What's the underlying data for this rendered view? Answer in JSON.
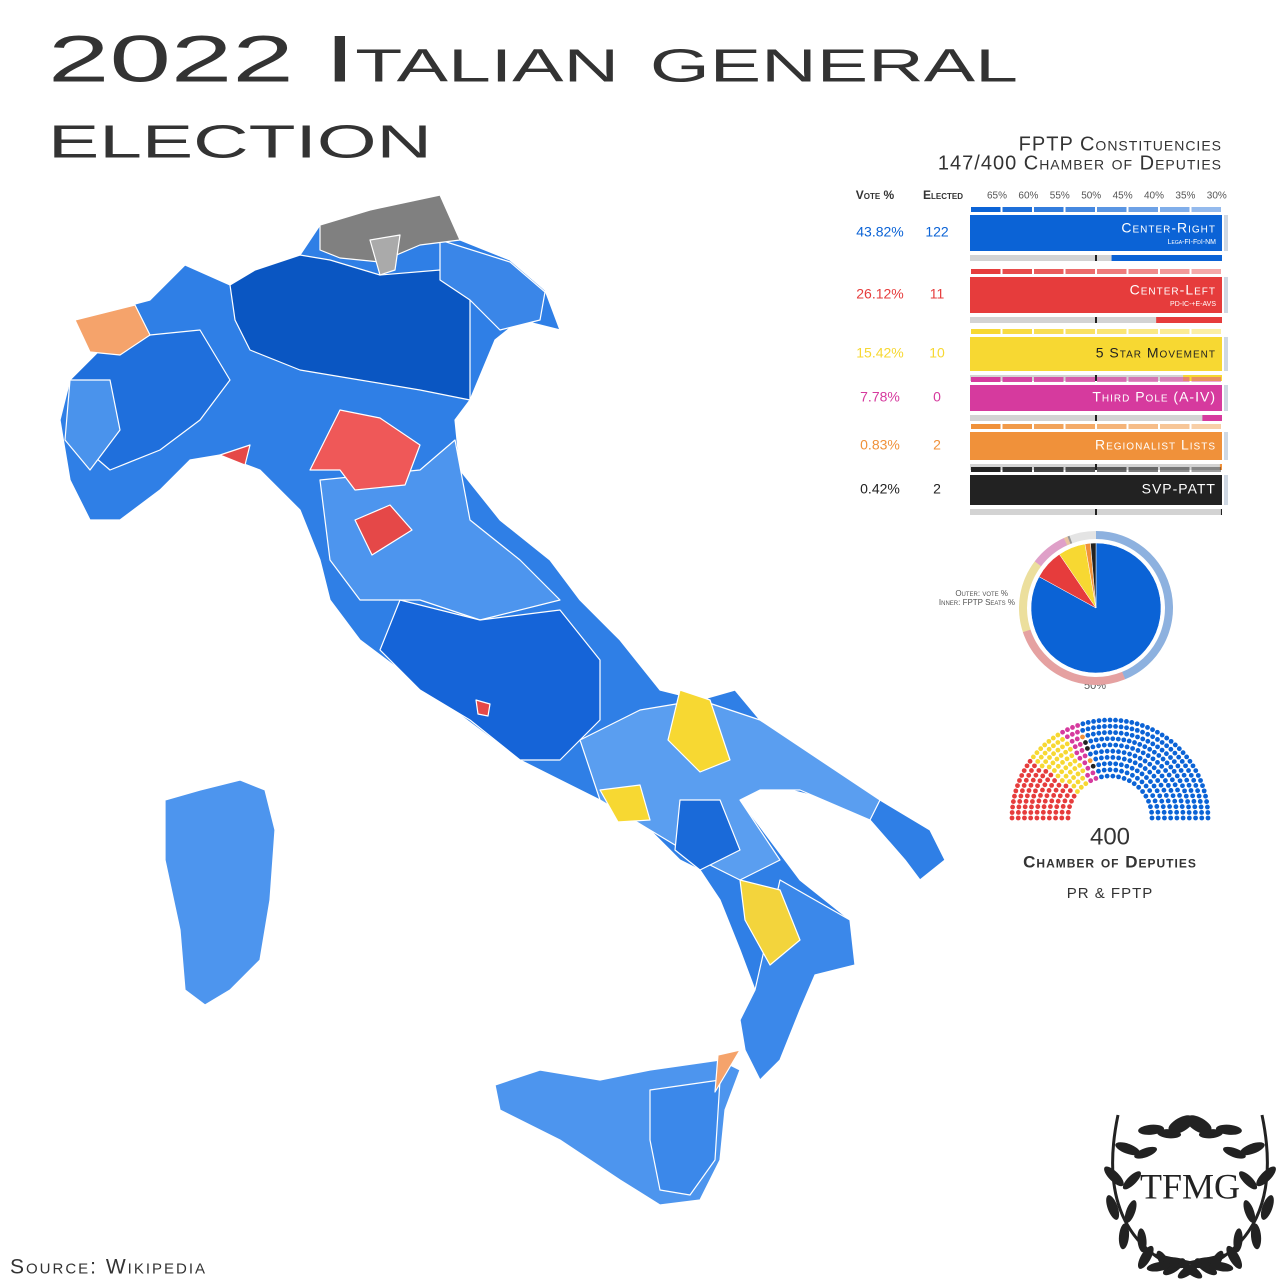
{
  "title": [
    "2022 Italian general",
    "election"
  ],
  "subtitle": [
    "FPTP Constituencies",
    "147/400 Chamber of Deputies"
  ],
  "table": {
    "headers": [
      "Vote %",
      "Elected"
    ],
    "scale": [
      "65%",
      "60%",
      "55%",
      "50%",
      "45%",
      "40%",
      "35%",
      "30%"
    ],
    "rows": [
      {
        "name": "Center-Right",
        "parties": "Lega-FI-FdI-NM",
        "vote": 43.82,
        "vote_label": "43.82%",
        "elected": 122,
        "seats": 237,
        "color": "#0b63d6",
        "text_color": "#ffffff"
      },
      {
        "name": "Center-Left",
        "parties": "PD-IC-+E-AVS",
        "vote": 26.12,
        "vote_label": "26.12%",
        "elected": 11,
        "seats": 85,
        "color": "#e63c3c",
        "text_color": "#ffffff"
      },
      {
        "name": "5 Star Movement",
        "vote": 15.42,
        "vote_label": "15.42%",
        "elected": 10,
        "seats": 52,
        "color": "#f7d832",
        "text_color": "#222222"
      },
      {
        "name": "Third Pole (A-IV)",
        "vote": 7.78,
        "vote_label": "7.78%",
        "elected": 0,
        "seats": 21,
        "color": "#d63a9e",
        "text_color": "#ffffff"
      },
      {
        "name": "Regionalist Lists",
        "vote": 0.83,
        "vote_label": "0.83%",
        "elected": 2,
        "seats": 2,
        "color": "#f0913a",
        "text_color": "#ffffff"
      },
      {
        "name": "SVP-PATT",
        "vote": 0.42,
        "vote_label": "0.42%",
        "elected": 2,
        "seats": 3,
        "color": "#222222",
        "text_color": "#ffffff"
      }
    ]
  },
  "pie": {
    "outer_label": "Outer: vote %",
    "inner_label": "Inner: FPTP Seats %",
    "half_label": "50%"
  },
  "hemicycle": {
    "total": 400,
    "label": "Chamber of Deputies",
    "sub": "PR & FPTP"
  },
  "logo": "TFMG",
  "source": "Source: Wikipedia"
}
